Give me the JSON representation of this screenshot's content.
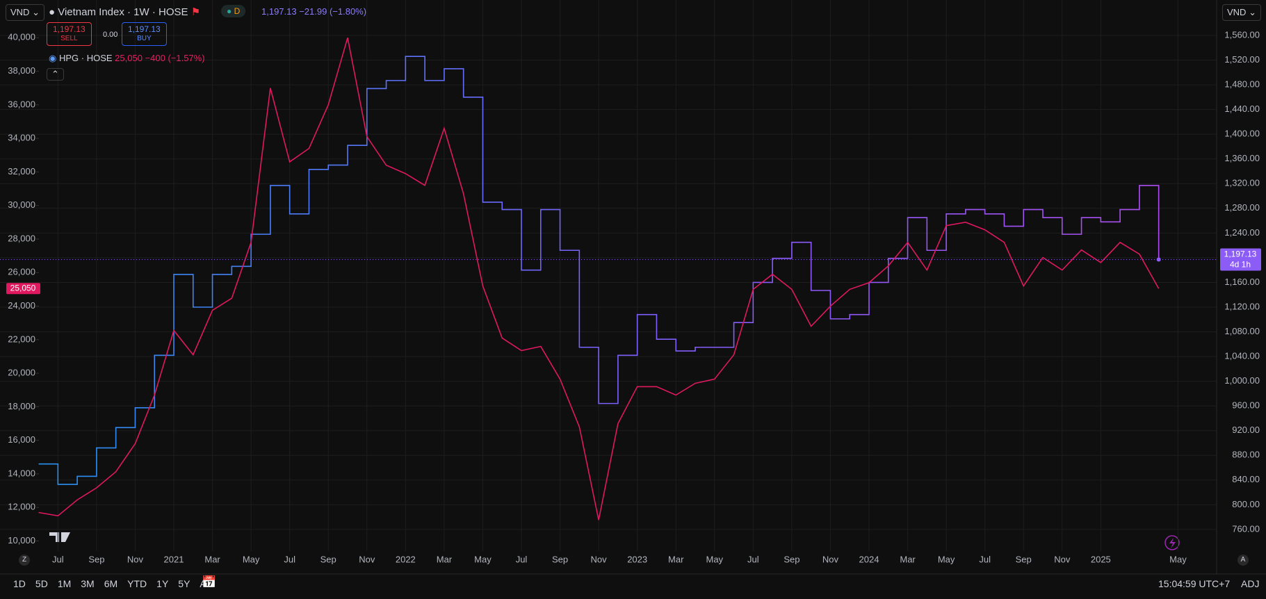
{
  "toolbar": {
    "currency_left": "VND",
    "currency_right": "VND",
    "ranges": [
      "1D",
      "5D",
      "1M",
      "3M",
      "6M",
      "YTD",
      "1Y",
      "5Y",
      "All"
    ],
    "clock": "15:04:59 UTC+7",
    "adj": "ADJ",
    "z": "Z",
    "a": "A"
  },
  "legend": {
    "interval_badge": "D",
    "main_quote": "1,197.13 −21.99 (−1.80%)",
    "sell": {
      "price": "1,197.13",
      "label": "SELL"
    },
    "spread": "0.00",
    "buy": {
      "price": "1,197.13",
      "label": "BUY"
    },
    "compare_quote": "25,050 −400 (−1.57%)"
  },
  "chart_data": {
    "type": "line",
    "grid": true,
    "x": [
      "2020-06",
      "2020-07",
      "2020-08",
      "2020-09",
      "2020-10",
      "2020-11",
      "2020-12",
      "2021-01",
      "2021-02",
      "2021-03",
      "2021-04",
      "2021-05",
      "2021-06",
      "2021-07",
      "2021-08",
      "2021-09",
      "2021-10",
      "2021-11",
      "2021-12",
      "2022-01",
      "2022-02",
      "2022-03",
      "2022-04",
      "2022-05",
      "2022-06",
      "2022-07",
      "2022-08",
      "2022-09",
      "2022-10",
      "2022-11",
      "2022-12",
      "2023-01",
      "2023-02",
      "2023-03",
      "2023-04",
      "2023-05",
      "2023-06",
      "2023-07",
      "2023-08",
      "2023-09",
      "2023-10",
      "2023-11",
      "2023-12",
      "2024-01",
      "2024-02",
      "2024-03",
      "2024-04",
      "2024-05",
      "2024-06",
      "2024-07",
      "2024-08",
      "2024-09",
      "2024-10",
      "2024-11",
      "2024-12",
      "2025-01",
      "2025-02",
      "2025-03",
      "2025-04"
    ],
    "series": [
      {
        "name": "Vietnam Index · 1W · HOSE",
        "axis": "y2",
        "step": true,
        "color": "#8c5cf6",
        "gradient": [
          "#2196f3",
          "#7b61ff",
          "#b34cf0"
        ],
        "price_label": "1,197.13",
        "countdown": "4d 1h",
        "values": [
          866,
          833,
          846,
          892,
          925,
          957,
          1042,
          1173,
          1120,
          1173,
          1186,
          1238,
          1317,
          1271,
          1343,
          1350,
          1382,
          1474,
          1487,
          1526,
          1487,
          1506,
          1460,
          1290,
          1278,
          1180,
          1278,
          1212,
          1055,
          964,
          1042,
          1108,
          1068,
          1049,
          1055,
          1055,
          1095,
          1160,
          1199,
          1225,
          1147,
          1101,
          1108,
          1160,
          1199,
          1265,
          1212,
          1271,
          1278,
          1271,
          1251,
          1278,
          1265,
          1238,
          1265,
          1258,
          1278,
          1317,
          1197.13
        ]
      },
      {
        "name": "HPG · HOSE",
        "step": false,
        "color": "#e0185f",
        "price_label": "25,050",
        "values": [
          11700,
          11500,
          12450,
          13170,
          14130,
          15800,
          18700,
          22550,
          21100,
          23750,
          24470,
          27800,
          37000,
          32600,
          33400,
          36000,
          40000,
          34100,
          32400,
          31900,
          31200,
          34600,
          30700,
          25200,
          22100,
          21350,
          21600,
          19650,
          16800,
          11250,
          17000,
          19200,
          19200,
          18700,
          19400,
          19650,
          21100,
          25000,
          25900,
          25000,
          22800,
          24000,
          25000,
          25400,
          26400,
          27800,
          26150,
          28800,
          29000,
          28550,
          27800,
          25200,
          26900,
          26150,
          27350,
          26600,
          27800,
          27100,
          25050
        ]
      }
    ],
    "xlim": [
      "2020-04",
      "2025-07"
    ],
    "xticks": [
      {
        "value": "2020-07",
        "label": "Jul"
      },
      {
        "value": "2020-09",
        "label": "Sep"
      },
      {
        "value": "2020-11",
        "label": "Nov"
      },
      {
        "value": "2021-01",
        "label": "2021"
      },
      {
        "value": "2021-03",
        "label": "Mar"
      },
      {
        "value": "2021-05",
        "label": "May"
      },
      {
        "value": "2021-07",
        "label": "Jul"
      },
      {
        "value": "2021-09",
        "label": "Sep"
      },
      {
        "value": "2021-11",
        "label": "Nov"
      },
      {
        "value": "2022-01",
        "label": "2022"
      },
      {
        "value": "2022-03",
        "label": "Mar"
      },
      {
        "value": "2022-05",
        "label": "May"
      },
      {
        "value": "2022-07",
        "label": "Jul"
      },
      {
        "value": "2022-09",
        "label": "Sep"
      },
      {
        "value": "2022-11",
        "label": "Nov"
      },
      {
        "value": "2023-01",
        "label": "2023"
      },
      {
        "value": "2023-03",
        "label": "Mar"
      },
      {
        "value": "2023-05",
        "label": "May"
      },
      {
        "value": "2023-07",
        "label": "Jul"
      },
      {
        "value": "2023-09",
        "label": "Sep"
      },
      {
        "value": "2023-11",
        "label": "Nov"
      },
      {
        "value": "2024-01",
        "label": "2024"
      },
      {
        "value": "2024-03",
        "label": "Mar"
      },
      {
        "value": "2024-05",
        "label": "May"
      },
      {
        "value": "2024-07",
        "label": "Jul"
      },
      {
        "value": "2024-09",
        "label": "Sep"
      },
      {
        "value": "2024-11",
        "label": "Nov"
      },
      {
        "value": "2025-01",
        "label": "2025"
      },
      {
        "value": "2025-05",
        "label": "May"
      }
    ],
    "ylim": [
      9400,
      40800
    ],
    "yticks": [
      {
        "value": 10000,
        "label": "10,000"
      },
      {
        "value": 12000,
        "label": "12,000"
      },
      {
        "value": 14000,
        "label": "14,000"
      },
      {
        "value": 16000,
        "label": "16,000"
      },
      {
        "value": 18000,
        "label": "18,000"
      },
      {
        "value": 20000,
        "label": "20,000"
      },
      {
        "value": 22000,
        "label": "22,000"
      },
      {
        "value": 24000,
        "label": "24,000"
      },
      {
        "value": 26000,
        "label": "26,000"
      },
      {
        "value": 28000,
        "label": "28,000"
      },
      {
        "value": 30000,
        "label": "30,000"
      },
      {
        "value": 32000,
        "label": "32,000"
      },
      {
        "value": 34000,
        "label": "34,000"
      },
      {
        "value": 36000,
        "label": "36,000"
      },
      {
        "value": 38000,
        "label": "38,000"
      },
      {
        "value": 40000,
        "label": "40,000"
      }
    ],
    "y2lim": [
      725,
      1578
    ],
    "y2ticks": [
      {
        "value": 760,
        "label": "760.00"
      },
      {
        "value": 800,
        "label": "800.00"
      },
      {
        "value": 840,
        "label": "840.00"
      },
      {
        "value": 880,
        "label": "880.00"
      },
      {
        "value": 920,
        "label": "920.00"
      },
      {
        "value": 960,
        "label": "960.00"
      },
      {
        "value": 1000,
        "label": "1,000.00"
      },
      {
        "value": 1040,
        "label": "1,040.00"
      },
      {
        "value": 1080,
        "label": "1,080.00"
      },
      {
        "value": 1120,
        "label": "1,120.00"
      },
      {
        "value": 1160,
        "label": "1,160.00"
      },
      {
        "value": 1200,
        "label": "1,200.00"
      },
      {
        "value": 1240,
        "label": "1,240.00"
      },
      {
        "value": 1280,
        "label": "1,280.00"
      },
      {
        "value": 1320,
        "label": "1,320.00"
      },
      {
        "value": 1360,
        "label": "1,360.00"
      },
      {
        "value": 1400,
        "label": "1,400.00"
      },
      {
        "value": 1440,
        "label": "1,440.00"
      },
      {
        "value": 1480,
        "label": "1,480.00"
      },
      {
        "value": 1520,
        "label": "1,520.00"
      },
      {
        "value": 1560,
        "label": "1,560.00"
      }
    ]
  }
}
